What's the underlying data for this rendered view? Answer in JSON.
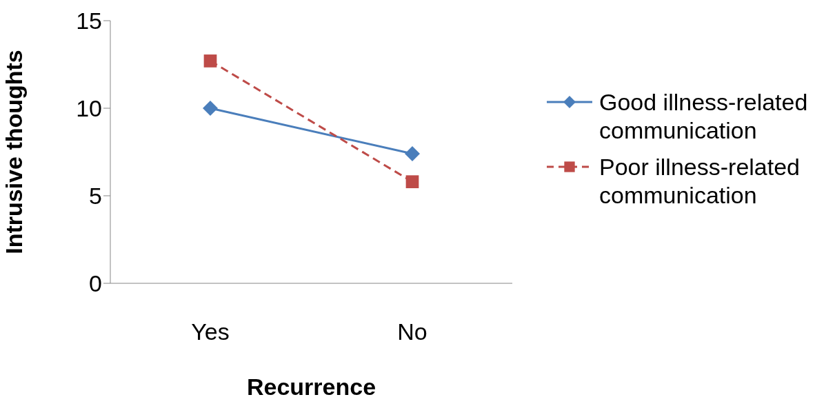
{
  "chart_data": {
    "type": "line",
    "xlabel": "Recurrence",
    "ylabel": "Intrusive thoughts",
    "categories": [
      "Yes",
      "No"
    ],
    "ylim": [
      0,
      15
    ],
    "yticks": [
      0,
      5,
      10,
      15
    ],
    "grid": false,
    "legend": "right",
    "series": [
      {
        "name": "Good illness-related communication",
        "color": "#4a7ebb",
        "values": [
          10,
          7.4
        ],
        "marker": "diamond",
        "line_style": "solid"
      },
      {
        "name": "Poor illness-related communication",
        "color": "#be4b48",
        "values": [
          12.7,
          5.8
        ],
        "marker": "square",
        "line_style": "dashed"
      }
    ]
  }
}
